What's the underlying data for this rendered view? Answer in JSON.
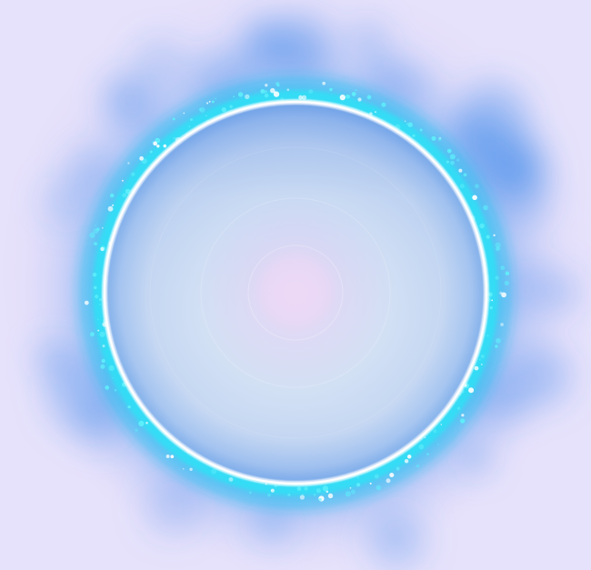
{
  "image": {
    "background_color": "#e4dffa",
    "halo_color": "#3f8fe8",
    "ring_glow_color": "#25d6f3",
    "ring_edge_color": "#ffffff",
    "disc_center_color": "#e9dbf6",
    "disc_edge_color": "#9ec0f0"
  }
}
